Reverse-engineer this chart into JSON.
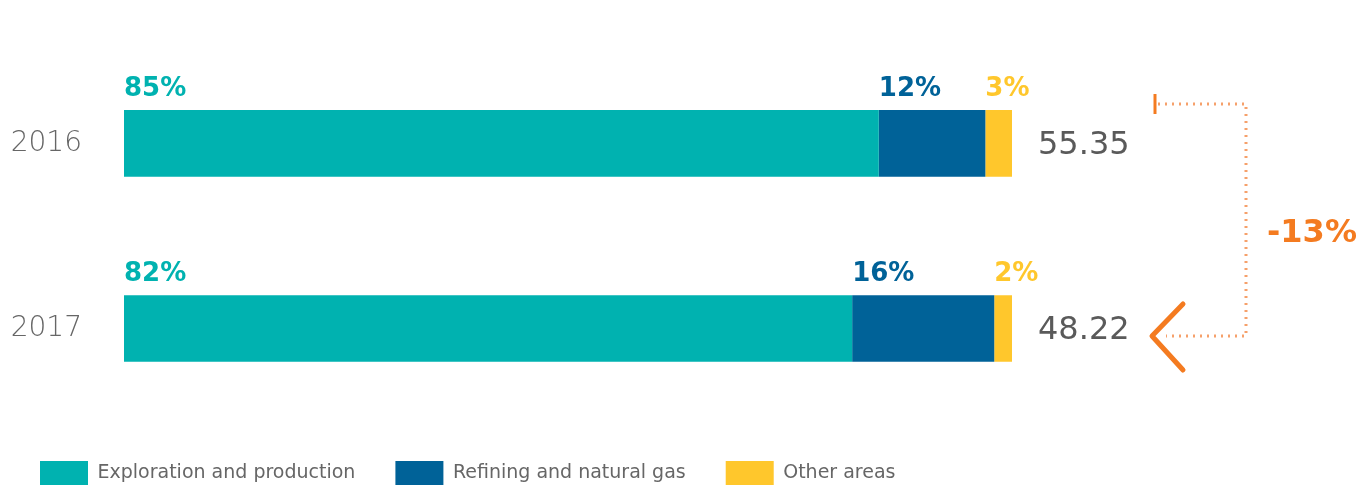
{
  "chart_data": {
    "type": "bar",
    "orientation": "horizontal",
    "stacked": true,
    "categories": [
      "2016",
      "2017"
    ],
    "series": [
      {
        "name": "Exploration and production",
        "color": "#00b2b0",
        "values": [
          85,
          82
        ],
        "value_labels": [
          "85%",
          "82%"
        ]
      },
      {
        "name": "Refining and natural gas",
        "color": "#006298",
        "values": [
          12,
          16
        ],
        "value_labels": [
          "12%",
          "16%"
        ]
      },
      {
        "name": "Other areas",
        "color": "#ffc72c",
        "values": [
          3,
          2
        ],
        "value_labels": [
          "3%",
          "2%"
        ]
      }
    ],
    "annotations": [
      "55.35",
      "48.22",
      "-13%"
    ],
    "legend": "bottom",
    "grid": false,
    "tick_labels": "y"
  }
}
